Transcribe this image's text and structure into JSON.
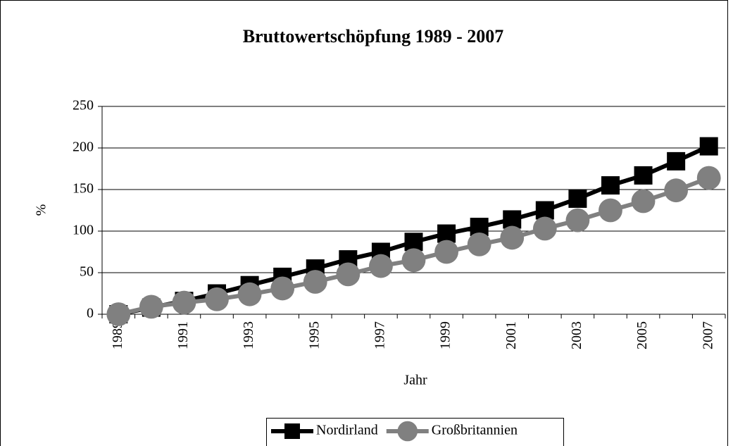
{
  "chart_data": {
    "type": "line",
    "title": "Bruttowertschöpfung 1989 - 2007",
    "x_label": "Jahr",
    "y_label": "%",
    "categories": [
      "1989",
      null,
      "1991",
      null,
      "1993",
      null,
      "1995",
      null,
      "1997",
      null,
      "1999",
      null,
      "2001",
      null,
      "2003",
      null,
      "2005",
      null,
      "2007"
    ],
    "series": [
      {
        "name": "Nordirland",
        "color": "#000000",
        "marker": "square",
        "values": [
          0,
          8,
          16,
          25,
          35,
          45,
          55,
          66,
          75,
          87,
          97,
          105,
          114,
          125,
          139,
          155,
          167,
          184,
          202
        ]
      },
      {
        "name": "Großbritannien",
        "color": "#808080",
        "marker": "circle",
        "values": [
          0,
          9,
          14,
          18,
          24,
          31,
          39,
          48,
          58,
          65,
          75,
          84,
          92,
          103,
          113,
          125,
          136,
          149,
          164
        ]
      }
    ],
    "ylim": [
      0,
      250
    ],
    "yticks": [
      0,
      50,
      100,
      150,
      200,
      250
    ],
    "grid": true,
    "legend": "bottom"
  }
}
